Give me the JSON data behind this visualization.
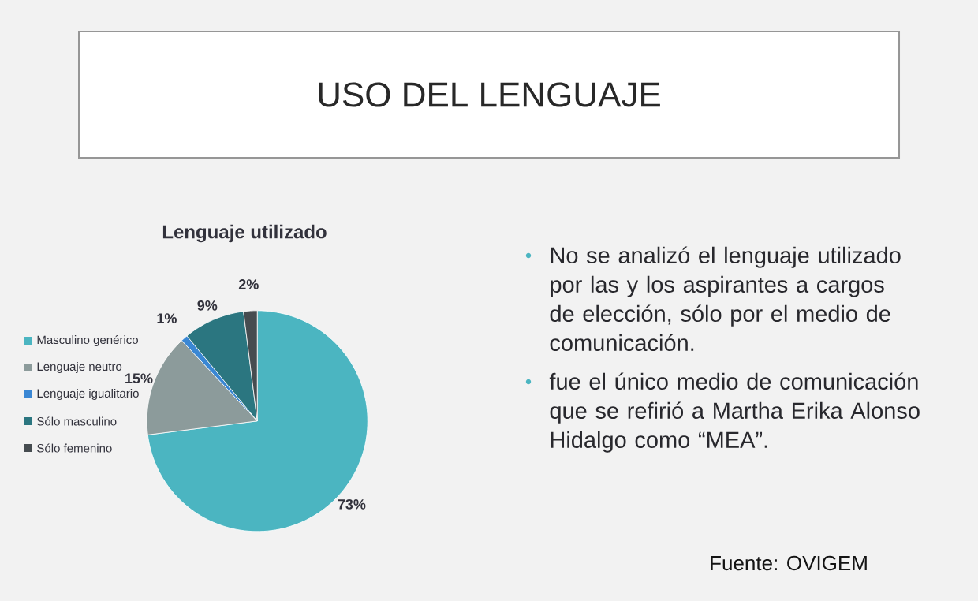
{
  "chart_data": {
    "type": "pie",
    "title": "USO DEL LENGUAJE",
    "subtitle": "Lenguaje utilizado",
    "categories": [
      "Masculino genérico",
      "Lenguaje neutro",
      "Lenguaje igualitario",
      "Sólo masculino",
      "Sólo femenino"
    ],
    "values": [
      73,
      15,
      1,
      9,
      2
    ],
    "colors": [
      "#4bb5c1",
      "#8c9b9b",
      "#3a87d4",
      "#2b7680",
      "#464c50"
    ],
    "value_labels": [
      "73%",
      "15%",
      "1%",
      "9%",
      "2%"
    ],
    "legend": "left",
    "annotations": [
      "No se analizó el lenguaje utilizado por las y los aspirantes a cargos de elección, sólo por el medio de comunicación.",
      "fue el único medio de comunicación que se refirió a Martha Erika Alonso Hidalgo como “MEA”.",
      "Fuente: OVIGEM"
    ]
  }
}
